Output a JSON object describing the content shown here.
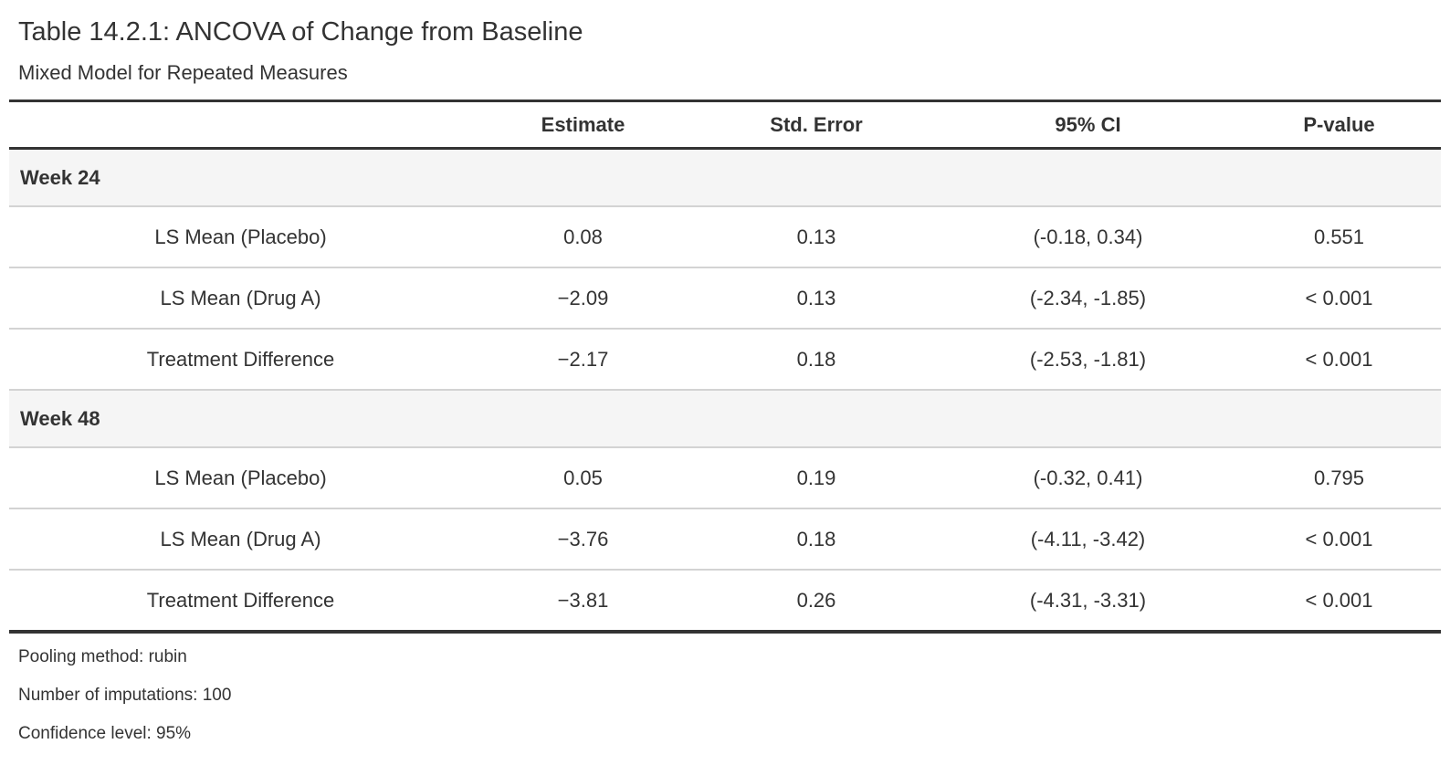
{
  "title": "Table 14.2.1: ANCOVA of Change from Baseline",
  "subtitle": "Mixed Model for Repeated Measures",
  "columns": {
    "stub": "",
    "estimate": "Estimate",
    "std_error": "Std. Error",
    "ci": "95% CI",
    "p_value": "P-value"
  },
  "groups": [
    {
      "label": "Week 24",
      "rows": [
        {
          "label": "LS Mean (Placebo)",
          "estimate": "0.08",
          "std_error": "0.13",
          "ci": "(-0.18, 0.34)",
          "p_value": "0.551"
        },
        {
          "label": "LS Mean (Drug A)",
          "estimate": "−2.09",
          "std_error": "0.13",
          "ci": "(-2.34, -1.85)",
          "p_value": "< 0.001"
        },
        {
          "label": "Treatment Difference",
          "estimate": "−2.17",
          "std_error": "0.18",
          "ci": "(-2.53, -1.81)",
          "p_value": "< 0.001"
        }
      ]
    },
    {
      "label": "Week 48",
      "rows": [
        {
          "label": "LS Mean (Placebo)",
          "estimate": "0.05",
          "std_error": "0.19",
          "ci": "(-0.32, 0.41)",
          "p_value": "0.795"
        },
        {
          "label": "LS Mean (Drug A)",
          "estimate": "−3.76",
          "std_error": "0.18",
          "ci": "(-4.11, -3.42)",
          "p_value": "< 0.001"
        },
        {
          "label": "Treatment Difference",
          "estimate": "−3.81",
          "std_error": "0.26",
          "ci": "(-4.31, -3.31)",
          "p_value": "< 0.001"
        }
      ]
    }
  ],
  "footnotes": [
    "Pooling method: rubin",
    "Number of imputations: 100",
    "Confidence level: 95%"
  ],
  "colors": {
    "text": "#333333",
    "border_dark": "#333333",
    "separator": "#d3d3d3",
    "group_row_bg": "#f5f5f5"
  }
}
